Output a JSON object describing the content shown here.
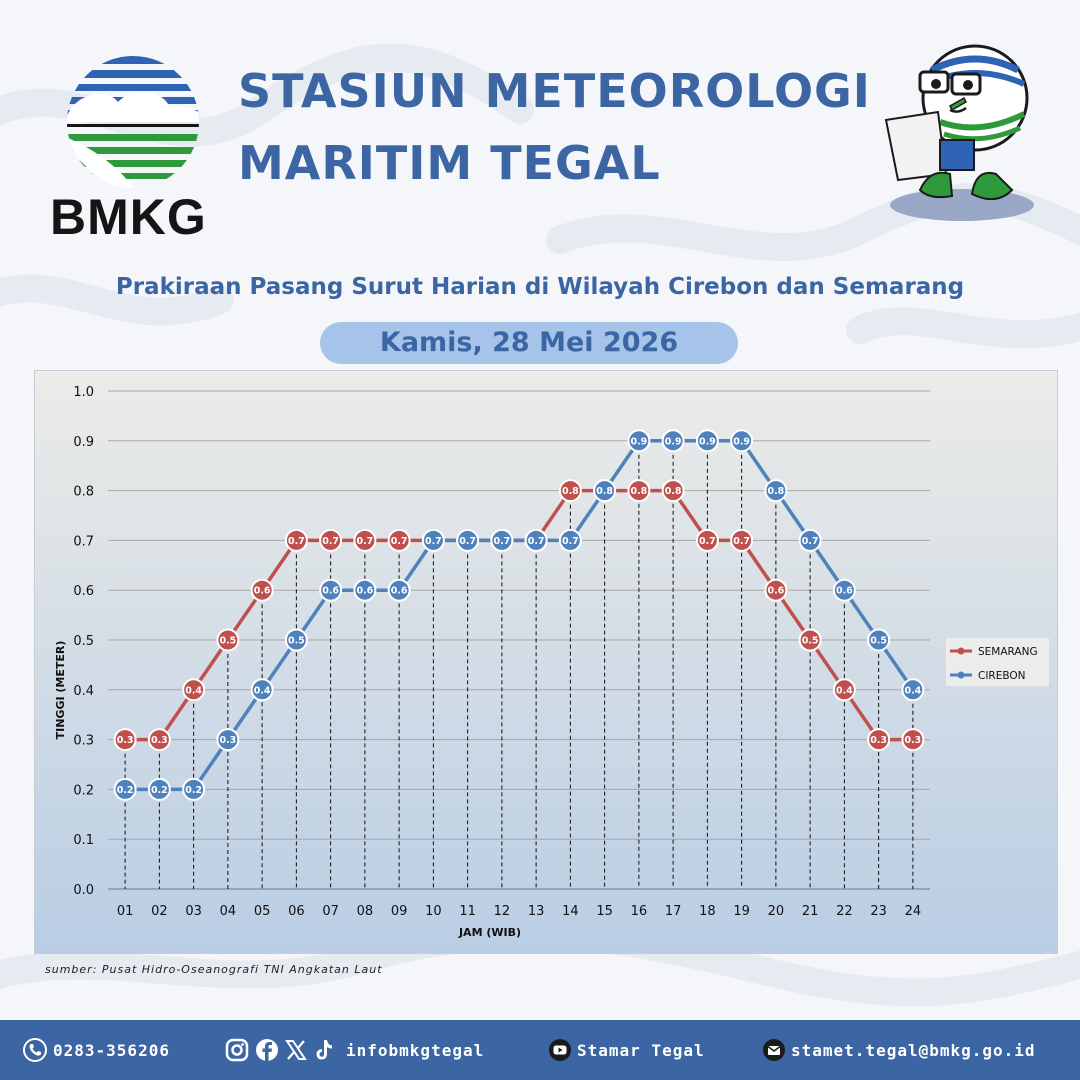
{
  "header": {
    "logo_text": "BMKG",
    "title_line1": "STASIUN METEOROLOGI",
    "title_line2": "MARITIM TEGAL",
    "subtitle": "Prakiraan Pasang Surut Harian di Wilayah Cirebon dan Semarang",
    "date": "Kamis, 28 Mei 2026"
  },
  "chart_data": {
    "type": "line",
    "title": "",
    "xlabel": "JAM (WIB)",
    "ylabel": "TINGGI (METER)",
    "ylim": [
      0,
      1
    ],
    "yticks": [
      "0.0",
      "0.1",
      "0.2",
      "0.3",
      "0.4",
      "0.5",
      "0.6",
      "0.7",
      "0.8",
      "0.9",
      "1.0"
    ],
    "categories": [
      "01",
      "02",
      "03",
      "04",
      "05",
      "06",
      "07",
      "08",
      "09",
      "10",
      "11",
      "12",
      "13",
      "14",
      "15",
      "16",
      "17",
      "18",
      "19",
      "20",
      "21",
      "22",
      "23",
      "24"
    ],
    "grid": true,
    "legend": "right",
    "series": [
      {
        "name": "SEMARANG",
        "color": "#c0504d",
        "values": [
          0.3,
          0.3,
          0.4,
          0.5,
          0.6,
          0.7,
          0.7,
          0.7,
          0.7,
          0.7,
          0.7,
          0.7,
          0.7,
          0.8,
          0.8,
          0.8,
          0.8,
          0.7,
          0.7,
          0.6,
          0.5,
          0.4,
          0.3,
          0.3
        ]
      },
      {
        "name": "CIREBON",
        "color": "#4f81bd",
        "values": [
          0.2,
          0.2,
          0.2,
          0.3,
          0.4,
          0.5,
          0.6,
          0.6,
          0.6,
          0.7,
          0.7,
          0.7,
          0.7,
          0.7,
          0.8,
          0.9,
          0.9,
          0.9,
          0.9,
          0.8,
          0.7,
          0.6,
          0.5,
          0.4
        ]
      }
    ]
  },
  "source": "sumber: Pusat Hidro-Oseanografi TNI Angkatan Laut",
  "footer": {
    "phone": "0283-356206",
    "social_handle": "infobmkgtegal",
    "youtube": "Stamar Tegal",
    "email": "stamet.tegal@bmkg.go.id"
  },
  "icons": [
    "phone-icon",
    "instagram-icon",
    "facebook-icon",
    "x-icon",
    "tiktok-icon",
    "youtube-icon",
    "mail-icon"
  ]
}
